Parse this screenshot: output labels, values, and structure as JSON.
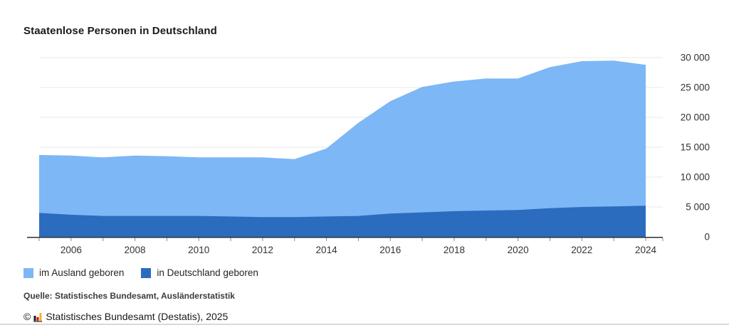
{
  "header": {
    "title": "Staatenlose Personen in Deutschland"
  },
  "chart_data": {
    "type": "area",
    "stacked": true,
    "title": "Staatenlose Personen in Deutschland",
    "x": [
      2005,
      2006,
      2007,
      2008,
      2009,
      2010,
      2011,
      2012,
      2013,
      2014,
      2015,
      2016,
      2017,
      2018,
      2019,
      2020,
      2021,
      2022,
      2023,
      2024
    ],
    "series": [
      {
        "name": "im Ausland geboren",
        "color": "#7db7f5",
        "values": [
          9700,
          9900,
          9800,
          10100,
          10000,
          9800,
          9900,
          10000,
          9700,
          11400,
          15600,
          18800,
          21000,
          21700,
          22100,
          22000,
          23600,
          24400,
          24400,
          23600
        ]
      },
      {
        "name": "in Deutschland geboren",
        "color": "#2b6cbf",
        "values": [
          4000,
          3700,
          3500,
          3500,
          3500,
          3500,
          3400,
          3300,
          3300,
          3400,
          3500,
          3900,
          4100,
          4300,
          4400,
          4500,
          4800,
          5000,
          5100,
          5200
        ]
      }
    ],
    "totals": [
      13700,
      13600,
      13300,
      13600,
      13500,
      13300,
      13300,
      13300,
      13000,
      14800,
      19100,
      22700,
      25100,
      26000,
      26500,
      26500,
      28400,
      29400,
      29500,
      28800
    ],
    "xlabel": "",
    "ylabel": "",
    "ylim": [
      0,
      30000
    ],
    "yticks": [
      {
        "value": 0,
        "label": "0"
      },
      {
        "value": 5000,
        "label": "5 000"
      },
      {
        "value": 10000,
        "label": "10 000"
      },
      {
        "value": 15000,
        "label": "15 000"
      },
      {
        "value": 20000,
        "label": "20 000"
      },
      {
        "value": 25000,
        "label": "25 000"
      },
      {
        "value": 30000,
        "label": "30 000"
      }
    ],
    "xticks": [
      {
        "value": 2006,
        "label": "2006"
      },
      {
        "value": 2008,
        "label": "2008"
      },
      {
        "value": 2010,
        "label": "2010"
      },
      {
        "value": 2012,
        "label": "2012"
      },
      {
        "value": 2014,
        "label": "2014"
      },
      {
        "value": 2016,
        "label": "2016"
      },
      {
        "value": 2018,
        "label": "2018"
      },
      {
        "value": 2020,
        "label": "2020"
      },
      {
        "value": 2022,
        "label": "2022"
      },
      {
        "value": 2024,
        "label": "2024"
      }
    ],
    "grid": true,
    "legend_position": "bottom-left"
  },
  "legend": {
    "items": [
      {
        "label": "im Ausland geboren",
        "color": "#7db7f5"
      },
      {
        "label": "in Deutschland geboren",
        "color": "#2b6cbf"
      }
    ]
  },
  "source": {
    "text": "Quelle: Statistisches Bundesamt, Ausländerstatistik"
  },
  "footer": {
    "copyright_symbol": "©",
    "text": "Statistisches Bundesamt (Destatis), 2025",
    "logo_colors": [
      "#1a1a1a",
      "#e10019",
      "#f0b323"
    ]
  },
  "colors": {
    "grid": "#e8e8e8",
    "axis": "#2f2f2f",
    "tick": "#8a8a8a",
    "axis_label": "#333333"
  }
}
